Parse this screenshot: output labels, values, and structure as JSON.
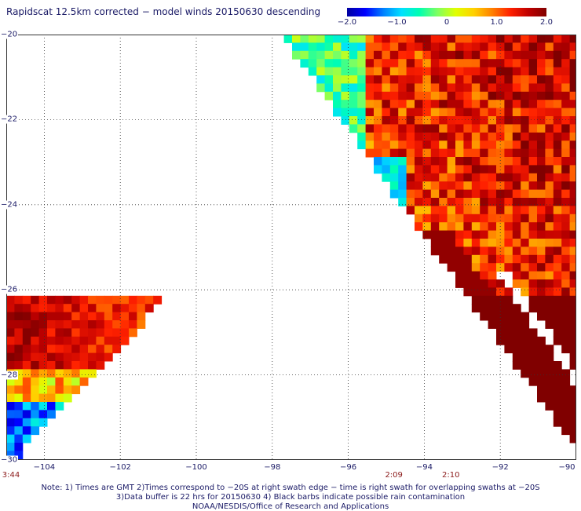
{
  "title": "Rapidscat 12.5km corrected − model winds 20150630 descending",
  "colorbar": {
    "ticks": [
      "−2.0",
      "−1.0",
      "0",
      "1.0",
      "2.0"
    ],
    "tick_values": [
      -2.0,
      -1.0,
      0,
      1.0,
      2.0
    ],
    "colors": [
      "#0000a0",
      "#0000ff",
      "#0080ff",
      "#00e0ff",
      "#00ffb0",
      "#80ff60",
      "#e0ff00",
      "#ffd000",
      "#ff8000",
      "#ff2000",
      "#c00000",
      "#800000"
    ]
  },
  "lat_labels": [
    "−20",
    "−22",
    "−24",
    "−26",
    "−28",
    "−30"
  ],
  "lat_values": [
    -20,
    -22,
    -24,
    -26,
    -28,
    -30
  ],
  "lon_labels": [
    "−104",
    "−102",
    "−100",
    "−98",
    "−96",
    "−94",
    "−92",
    "−90"
  ],
  "lon_values": [
    -104,
    -102,
    -100,
    -98,
    -96,
    -94,
    -92,
    -90
  ],
  "times": [
    {
      "label": "3:44",
      "lon": -105.0
    },
    {
      "label": "2:09",
      "lon": -94.8
    },
    {
      "label": "2:10",
      "lon": -93.3
    }
  ],
  "notes": [
    "Note: 1) Times are GMT 2)Times correspond to −20S at right swath edge − time is right swath for overlapping swaths at −20S",
    "3)Data buffer is 22 hrs for 20150630 4) Black barbs indicate possible rain contamination",
    "NOAA/NESDIS/Office of Research and Applications"
  ]
}
